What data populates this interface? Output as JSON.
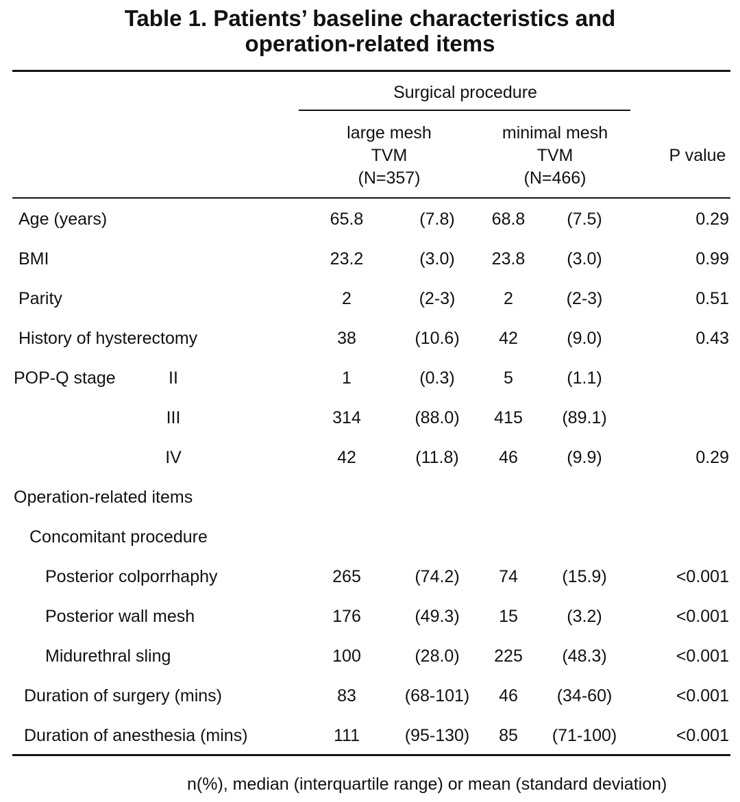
{
  "title": {
    "line1": "Table 1. Patients’ baseline characteristics and",
    "line2": "operation-related items"
  },
  "header": {
    "group": "Surgical procedure",
    "col_large": [
      "large mesh",
      "TVM",
      "(N=357)"
    ],
    "col_minimal": [
      "minimal mesh",
      "TVM",
      "(N=466)"
    ],
    "p_value": "P value"
  },
  "rows": [
    {
      "label": "Age (years)",
      "sub": "",
      "a1": "65.8",
      "a2": "(7.8)",
      "b1": "68.8",
      "b2": "(7.5)",
      "p": "0.29"
    },
    {
      "label": "BMI",
      "sub": "",
      "a1": "23.2",
      "a2": "(3.0)",
      "b1": "23.8",
      "b2": "(3.0)",
      "p": "0.99"
    },
    {
      "label": "Parity",
      "sub": "",
      "a1": "2",
      "a2": "(2-3)",
      "b1": "2",
      "b2": "(2-3)",
      "p": "0.51"
    },
    {
      "label": "History of hysterectomy",
      "sub": "",
      "a1": "38",
      "a2": "(10.6)",
      "b1": "42",
      "b2": "(9.0)",
      "p": "0.43"
    },
    {
      "label": "POP-Q stage",
      "sub": "II",
      "a1": "1",
      "a2": "(0.3)",
      "b1": "5",
      "b2": "(1.1)",
      "p": ""
    },
    {
      "label": "",
      "sub": "III",
      "a1": "314",
      "a2": "(88.0)",
      "b1": "415",
      "b2": "(89.1)",
      "p": ""
    },
    {
      "label": "",
      "sub": "IV",
      "a1": "42",
      "a2": "(11.8)",
      "b1": "46",
      "b2": "(9.9)",
      "p": "0.29"
    },
    {
      "label": "Operation-related items",
      "sub": "",
      "a1": "",
      "a2": "",
      "b1": "",
      "b2": "",
      "p": ""
    },
    {
      "label": "Concomitant procedure",
      "sub": "",
      "a1": "",
      "a2": "",
      "b1": "",
      "b2": "",
      "p": ""
    },
    {
      "label": "Posterior colporrhaphy",
      "sub": "",
      "a1": "265",
      "a2": "(74.2)",
      "b1": "74",
      "b2": "(15.9)",
      "p": "<0.001"
    },
    {
      "label": "Posterior wall mesh",
      "sub": "",
      "a1": "176",
      "a2": "(49.3)",
      "b1": "15",
      "b2": "(3.2)",
      "p": "<0.001"
    },
    {
      "label": "Midurethral sling",
      "sub": "",
      "a1": "100",
      "a2": "(28.0)",
      "b1": "225",
      "b2": "(48.3)",
      "p": "<0.001"
    },
    {
      "label": "Duration of surgery (mins)",
      "sub": "",
      "a1": "83",
      "a2": "(68-101)",
      "b1": "46",
      "b2": "(34-60)",
      "p": "<0.001"
    },
    {
      "label": "Duration of anesthesia (mins)",
      "sub": "",
      "a1": "111",
      "a2": "(95-130)",
      "b1": "85",
      "b2": "(71-100)",
      "p": "<0.001"
    }
  ],
  "footnote": "n(%), median (interquartile range) or mean (standard deviation)"
}
